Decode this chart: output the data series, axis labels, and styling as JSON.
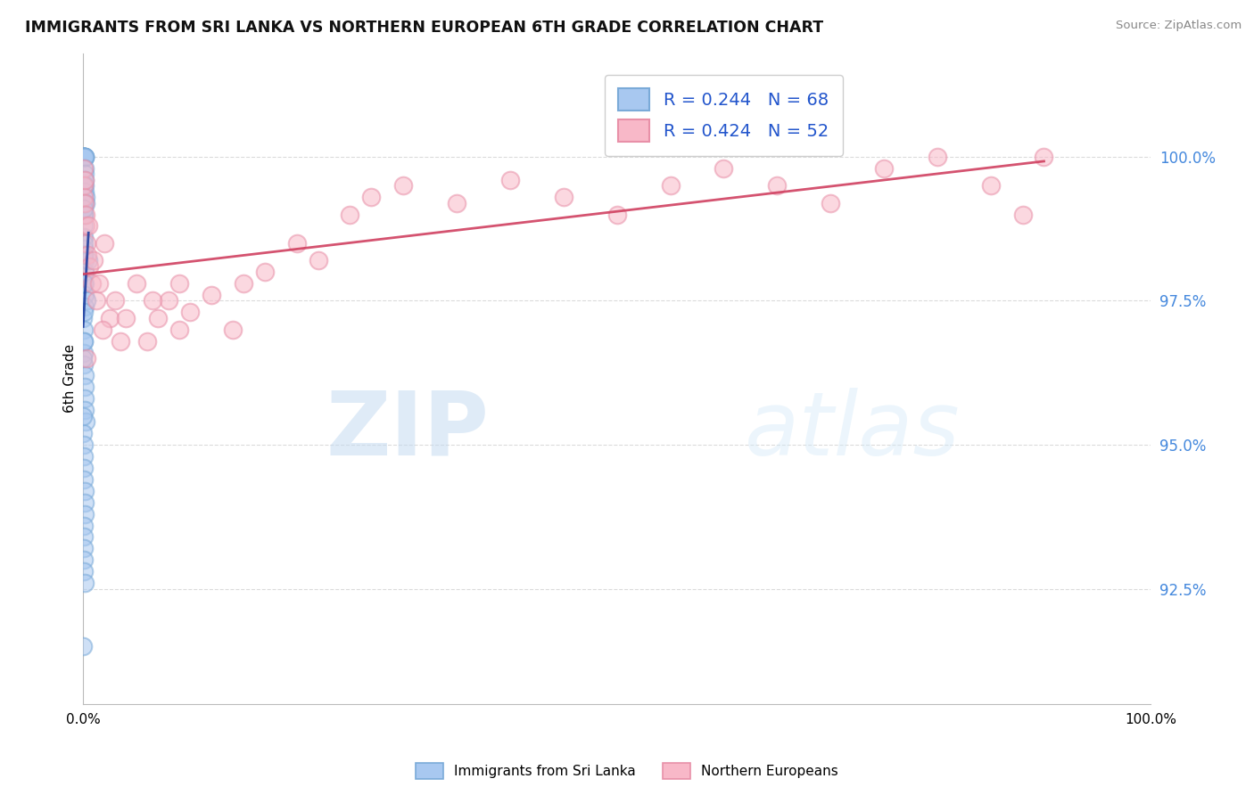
{
  "title": "IMMIGRANTS FROM SRI LANKA VS NORTHERN EUROPEAN 6TH GRADE CORRELATION CHART",
  "source": "Source: ZipAtlas.com",
  "ylabel": "6th Grade",
  "y_ticks": [
    92.5,
    95.0,
    97.5,
    100.0
  ],
  "y_tick_labels": [
    "92.5%",
    "95.0%",
    "97.5%",
    "100.0%"
  ],
  "x_min": 0.0,
  "x_max": 100.0,
  "y_min": 90.5,
  "y_max": 101.8,
  "blue_fill_color": "#a8c8f0",
  "blue_edge_color": "#7aaad8",
  "pink_fill_color": "#f8b8c8",
  "pink_edge_color": "#e890a8",
  "blue_line_color": "#2040a0",
  "pink_line_color": "#d04060",
  "legend_blue_label": "Immigrants from Sri Lanka",
  "legend_pink_label": "Northern Europeans",
  "R_blue": 0.244,
  "N_blue": 68,
  "R_pink": 0.424,
  "N_pink": 52,
  "blue_x": [
    0.02,
    0.03,
    0.04,
    0.05,
    0.06,
    0.07,
    0.08,
    0.09,
    0.1,
    0.11,
    0.12,
    0.13,
    0.14,
    0.15,
    0.16,
    0.17,
    0.18,
    0.19,
    0.2,
    0.21,
    0.02,
    0.03,
    0.05,
    0.07,
    0.09,
    0.11,
    0.13,
    0.15,
    0.17,
    0.19,
    0.02,
    0.04,
    0.06,
    0.08,
    0.1,
    0.12,
    0.14,
    0.16,
    0.18,
    0.2,
    0.02,
    0.03,
    0.05,
    0.07,
    0.09,
    0.11,
    0.13,
    0.15,
    0.03,
    0.04,
    0.06,
    0.08,
    0.1,
    0.12,
    0.3,
    0.5,
    0.08,
    0.04,
    0.06,
    0.03,
    0.02,
    0.04,
    0.06,
    0.08,
    0.02,
    0.03,
    0.05,
    0.02
  ],
  "blue_y": [
    100.0,
    100.0,
    100.0,
    100.0,
    100.0,
    100.0,
    100.0,
    100.0,
    100.0,
    100.0,
    100.0,
    100.0,
    100.0,
    99.8,
    99.7,
    99.6,
    99.5,
    99.4,
    99.3,
    99.2,
    99.1,
    99.0,
    98.8,
    98.6,
    98.4,
    98.2,
    98.0,
    97.8,
    97.6,
    97.4,
    97.2,
    97.0,
    96.8,
    96.6,
    96.4,
    96.2,
    96.0,
    95.8,
    95.6,
    95.4,
    95.2,
    95.0,
    94.8,
    94.6,
    94.4,
    94.2,
    94.0,
    93.8,
    93.6,
    93.4,
    93.2,
    93.0,
    92.8,
    92.6,
    97.5,
    98.2,
    99.0,
    99.5,
    98.5,
    99.2,
    96.5,
    97.8,
    98.3,
    99.1,
    95.5,
    96.8,
    97.3,
    91.5
  ],
  "pink_x": [
    0.05,
    0.08,
    0.1,
    0.12,
    0.15,
    0.2,
    0.25,
    0.3,
    0.4,
    0.5,
    0.6,
    0.8,
    1.0,
    1.2,
    1.5,
    2.0,
    2.5,
    3.0,
    4.0,
    5.0,
    6.0,
    7.0,
    8.0,
    9.0,
    10.0,
    12.0,
    14.0,
    15.0,
    17.0,
    20.0,
    22.0,
    25.0,
    27.0,
    30.0,
    35.0,
    40.0,
    45.0,
    50.0,
    55.0,
    60.0,
    65.0,
    70.0,
    75.0,
    80.0,
    85.0,
    88.0,
    90.0,
    0.3,
    1.8,
    3.5,
    6.5,
    9.0
  ],
  "pink_y": [
    99.8,
    99.5,
    99.3,
    99.2,
    99.6,
    98.8,
    99.0,
    98.5,
    98.3,
    98.8,
    98.1,
    97.8,
    98.2,
    97.5,
    97.8,
    98.5,
    97.2,
    97.5,
    97.2,
    97.8,
    96.8,
    97.2,
    97.5,
    97.0,
    97.3,
    97.6,
    97.0,
    97.8,
    98.0,
    98.5,
    98.2,
    99.0,
    99.3,
    99.5,
    99.2,
    99.6,
    99.3,
    99.0,
    99.5,
    99.8,
    99.5,
    99.2,
    99.8,
    100.0,
    99.5,
    99.0,
    100.0,
    96.5,
    97.0,
    96.8,
    97.5,
    97.8
  ],
  "watermark_zip": "ZIP",
  "watermark_atlas": "atlas",
  "bg_color": "#ffffff",
  "grid_color": "#cccccc"
}
